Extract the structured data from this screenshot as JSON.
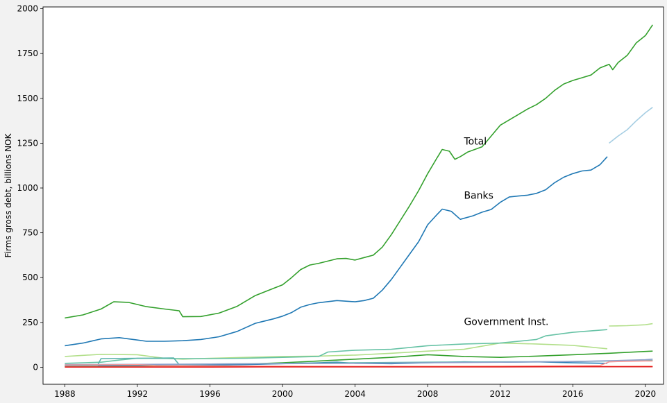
{
  "chart_data": {
    "type": "line",
    "ylabel": "Firms gross debt, billions NOK",
    "xlim": [
      1986.8,
      2021.0
    ],
    "ylim": [
      -95,
      2010
    ],
    "xticks": [
      1988,
      1992,
      1996,
      2000,
      2004,
      2008,
      2012,
      2016,
      2020
    ],
    "yticks": [
      0,
      250,
      500,
      750,
      1000,
      1250,
      1500,
      1750,
      2000
    ],
    "grid": false,
    "annotations": [
      {
        "text": "Total",
        "x": 2010.0,
        "y": 1262
      },
      {
        "text": "Banks",
        "x": 2010.0,
        "y": 960
      },
      {
        "text": "Government Inst.",
        "x": 2010.0,
        "y": 255
      }
    ],
    "series": [
      {
        "id": "total",
        "color": "#33a02c",
        "x": [
          1988.0,
          1989.0,
          1990.0,
          1990.7,
          1991.5,
          1992.5,
          1993.5,
          1994.3,
          1994.5,
          1995.5,
          1996.5,
          1997.5,
          1998.5,
          1999.5,
          2000.0,
          2000.5,
          2001.0,
          2001.5,
          2002.0,
          2003.0,
          2003.5,
          2004.0,
          2004.5,
          2005.0,
          2005.5,
          2006.0,
          2006.5,
          2007.0,
          2007.5,
          2008.0,
          2008.5,
          2008.8,
          2009.2,
          2009.5,
          2009.8,
          2010.2,
          2011.0,
          2011.5,
          2012.0,
          2012.5,
          2013.0,
          2013.5,
          2014.0,
          2014.5,
          2015.0,
          2015.5,
          2016.0,
          2016.5,
          2017.0,
          2017.5,
          2018.0,
          2018.2,
          2018.5,
          2019.0,
          2019.5,
          2020.0,
          2020.4
        ],
        "values": [
          275,
          292,
          325,
          365,
          362,
          338,
          325,
          315,
          282,
          283,
          302,
          340,
          400,
          440,
          460,
          500,
          545,
          570,
          580,
          605,
          607,
          598,
          612,
          625,
          670,
          740,
          820,
          900,
          985,
          1080,
          1165,
          1215,
          1205,
          1160,
          1175,
          1200,
          1230,
          1290,
          1350,
          1380,
          1410,
          1440,
          1465,
          1500,
          1545,
          1580,
          1600,
          1615,
          1630,
          1670,
          1690,
          1660,
          1700,
          1740,
          1810,
          1850,
          1910
        ]
      },
      {
        "id": "banks",
        "color": "#1f78b4",
        "x": [
          1988.0,
          1989.0,
          1990.0,
          1991.0,
          1992.0,
          1992.5,
          1993.5,
          1994.5,
          1995.5,
          1996.5,
          1997.5,
          1998.5,
          1999.5,
          2000.0,
          2000.5,
          2001.0,
          2001.5,
          2002.0,
          2003.0,
          2004.0,
          2004.5,
          2005.0,
          2005.5,
          2006.0,
          2006.5,
          2007.0,
          2007.5,
          2008.0,
          2008.5,
          2008.8,
          2009.3,
          2009.8,
          2010.5,
          2011.0,
          2011.5,
          2012.0,
          2012.5,
          2013.0,
          2013.5,
          2014.0,
          2014.5,
          2015.0,
          2015.5,
          2016.0,
          2016.5,
          2017.0,
          2017.5,
          2017.9
        ],
        "values": [
          120,
          135,
          158,
          165,
          152,
          145,
          145,
          148,
          155,
          170,
          200,
          245,
          270,
          285,
          305,
          335,
          350,
          360,
          372,
          365,
          372,
          385,
          430,
          490,
          560,
          630,
          700,
          795,
          850,
          882,
          870,
          825,
          845,
          865,
          880,
          920,
          950,
          955,
          960,
          970,
          990,
          1030,
          1060,
          1080,
          1095,
          1100,
          1130,
          1175
        ]
      },
      {
        "id": "total-est",
        "color": "#a6cee3",
        "x": [
          2018.0,
          2018.5,
          2019.0,
          2019.5,
          2020.0,
          2020.4
        ],
        "values": [
          1250,
          1290,
          1325,
          1375,
          1420,
          1450
        ]
      },
      {
        "id": "government-inst",
        "color": "#b2df8a",
        "x": [
          1988.0,
          1990.0,
          1992.0,
          1993.5,
          1994.5,
          1996.0,
          1998.0,
          2000.0,
          2002.0,
          2004.0,
          2006.0,
          2008.0,
          2010.0,
          2012.0,
          2014.0,
          2016.0,
          2017.9
        ],
        "values": [
          60,
          72,
          70,
          50,
          45,
          50,
          55,
          60,
          62,
          68,
          78,
          90,
          100,
          135,
          130,
          122,
          103
        ]
      },
      {
        "id": "series-5",
        "color": "#66c2a5",
        "x": [
          1988.0,
          1990.0,
          1991.0,
          1992.0,
          1994.0,
          1996.0,
          1998.0,
          2000.0,
          2002.0,
          2002.5,
          2004.0,
          2006.0,
          2008.0,
          2010.0,
          2012.0,
          2014.0,
          2014.5,
          2016.0,
          2017.9
        ],
        "values": [
          22,
          28,
          40,
          50,
          48,
          48,
          50,
          55,
          60,
          85,
          95,
          100,
          120,
          130,
          135,
          155,
          175,
          195,
          210
        ]
      },
      {
        "id": "series-6",
        "color": "#b2df8a",
        "x": [
          2018.0,
          2019.0,
          2020.0,
          2020.4
        ],
        "values": [
          230,
          232,
          237,
          243
        ]
      },
      {
        "id": "series-7",
        "color": "#33a02c",
        "x": [
          1988.0,
          1992.0,
          1996.0,
          2000.0,
          2002.0,
          2004.0,
          2006.0,
          2008.0,
          2010.0,
          2012.0,
          2014.0,
          2016.0,
          2018.0,
          2020.0,
          2020.4
        ],
        "values": [
          5,
          8,
          10,
          25,
          35,
          45,
          55,
          70,
          60,
          55,
          62,
          70,
          78,
          88,
          90
        ]
      },
      {
        "id": "series-8",
        "color": "#1f78b4",
        "x": [
          1988.0,
          1992.0,
          1996.0,
          1998.0,
          2000.0,
          2002.0,
          2003.0,
          2004.0,
          2006.0,
          2008.0,
          2010.0,
          2012.0,
          2014.0,
          2016.0,
          2017.9
        ],
        "values": [
          8,
          10,
          12,
          15,
          20,
          25,
          28,
          22,
          20,
          25,
          30,
          28,
          30,
          25,
          22
        ]
      },
      {
        "id": "series-9",
        "color": "#5ab4ac",
        "x": [
          1988.0,
          1989.8,
          1990.0,
          1992.0,
          1994.0,
          1994.3,
          1996.0,
          2000.0,
          2004.0,
          2008.0,
          2012.0,
          2016.0,
          2018.0,
          2020.0,
          2020.4
        ],
        "values": [
          10,
          10,
          48,
          50,
          52,
          15,
          18,
          22,
          25,
          28,
          30,
          32,
          35,
          38,
          38
        ]
      },
      {
        "id": "series-10",
        "color": "#8da0cb",
        "x": [
          1988.0,
          1992.0,
          1996.0,
          2000.0,
          2004.0,
          2008.0,
          2012.0,
          2016.0,
          2018.0,
          2020.0,
          2020.4
        ],
        "values": [
          15,
          16,
          18,
          20,
          22,
          25,
          28,
          32,
          36,
          42,
          45
        ]
      },
      {
        "id": "series-11",
        "color": "#fb9a99",
        "x": [
          1988.0,
          1992.0,
          1993.0,
          1996.0,
          2000.0,
          2004.0,
          2008.0,
          2012.0,
          2016.0,
          2017.5,
          2018.0,
          2018.5,
          2020.0,
          2020.4
        ],
        "values": [
          12,
          14,
          10,
          8,
          6,
          5,
          5,
          6,
          8,
          10,
          30,
          32,
          35,
          35
        ]
      },
      {
        "id": "series-12",
        "color": "#fc8d62",
        "x": [
          1988.0,
          1992.0,
          1996.0,
          2000.0,
          2004.0,
          2008.0,
          2012.0,
          2016.0,
          2020.0,
          2020.4
        ],
        "values": [
          2,
          2,
          3,
          3,
          3,
          4,
          4,
          4,
          5,
          5
        ]
      },
      {
        "id": "series-13",
        "color": "#e31a1c",
        "x": [
          1988.0,
          1992.0,
          1996.0,
          2000.0,
          2004.0,
          2008.0,
          2012.0,
          2016.0,
          2020.0,
          2020.4
        ],
        "values": [
          1,
          1,
          1,
          2,
          2,
          2,
          2,
          3,
          3,
          3
        ]
      }
    ]
  }
}
